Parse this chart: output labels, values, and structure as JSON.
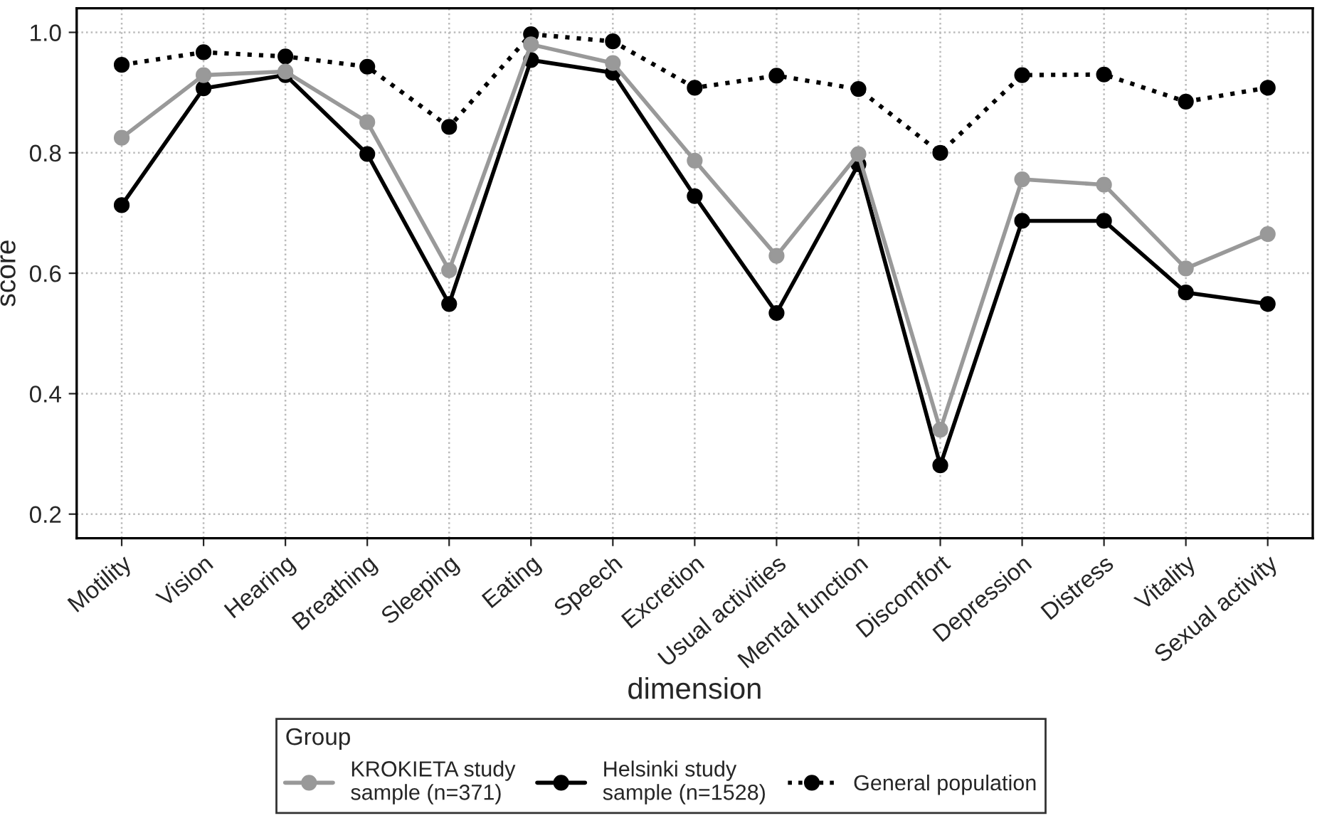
{
  "chart_data": {
    "type": "line",
    "xlabel": "dimension",
    "ylabel": "score",
    "legend_title": "Group",
    "categories": [
      "Motility",
      "Vision",
      "Hearing",
      "Breathing",
      "Sleeping",
      "Eating",
      "Speech",
      "Excretion",
      "Usual activities",
      "Mental function",
      "Discomfort",
      "Depression",
      "Distress",
      "Vitality",
      "Sexual activity"
    ],
    "series": [
      {
        "name": "KROKIETA study\nsample (n=371)",
        "color": "#999999",
        "line_style": "solid",
        "values": [
          0.825,
          0.929,
          0.935,
          0.851,
          0.605,
          0.98,
          0.949,
          0.787,
          0.629,
          0.798,
          0.34,
          0.756,
          0.747,
          0.608,
          0.665
        ]
      },
      {
        "name": "Helsinki study\nsample (n=1528)",
        "color": "#000000",
        "line_style": "solid",
        "values": [
          0.713,
          0.907,
          0.929,
          0.798,
          0.549,
          0.954,
          0.933,
          0.728,
          0.534,
          0.781,
          0.281,
          0.687,
          0.687,
          0.568,
          0.549
        ]
      },
      {
        "name": "General population",
        "color": "#000000",
        "line_style": "dotted",
        "values": [
          0.946,
          0.967,
          0.96,
          0.943,
          0.843,
          0.997,
          0.985,
          0.908,
          0.928,
          0.906,
          0.8,
          0.929,
          0.93,
          0.885,
          0.908
        ]
      }
    ],
    "ylim": [
      0.16,
      1.04
    ],
    "yticks": [
      {
        "value": 0.2,
        "label": "0.2"
      },
      {
        "value": 0.4,
        "label": "0.4"
      },
      {
        "value": 0.6,
        "label": "0.6"
      },
      {
        "value": 0.8,
        "label": "0.8"
      },
      {
        "value": 1.0,
        "label": "1.0"
      }
    ],
    "grid": true,
    "legend": "bottom",
    "marker": "circle"
  }
}
